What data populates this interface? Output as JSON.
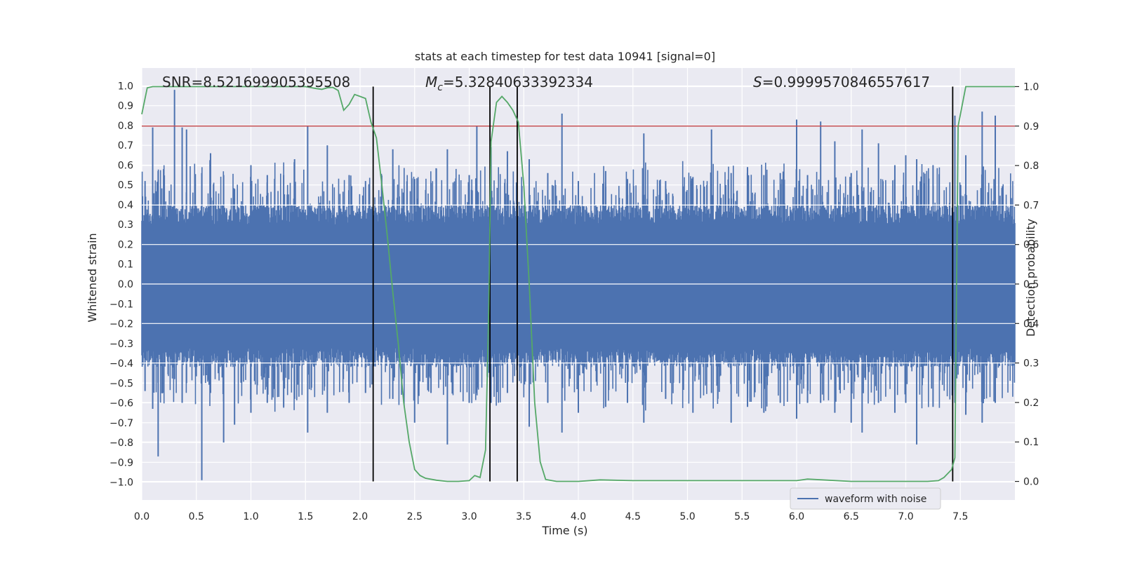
{
  "chart_data": {
    "type": "line",
    "title": "stats at each timestep for test data 10941 [signal=0]",
    "xlabel": "Time (s)",
    "ylabel": "Whitened strain",
    "y2label": "Detection probability",
    "xlim": [
      0,
      8.0
    ],
    "ylim": [
      -1.09,
      1.09
    ],
    "y2lim": [
      -0.047,
      1.047
    ],
    "xticks": [
      0.0,
      0.5,
      1.0,
      1.5,
      2.0,
      2.5,
      3.0,
      3.5,
      4.0,
      4.5,
      5.0,
      5.5,
      6.0,
      6.5,
      7.0,
      7.5
    ],
    "xtick_labels": [
      "0.0",
      "0.5",
      "1.0",
      "1.5",
      "2.0",
      "2.5",
      "3.0",
      "3.5",
      "4.0",
      "4.5",
      "5.0",
      "5.5",
      "6.0",
      "6.5",
      "7.0",
      "7.5"
    ],
    "yticks": [
      1.0,
      0.9,
      0.8,
      0.7,
      0.6,
      0.5,
      0.4,
      0.3,
      0.2,
      0.1,
      0.0,
      -0.1,
      -0.2,
      -0.3,
      -0.4,
      -0.5,
      -0.6,
      -0.7,
      -0.8,
      -0.9,
      -1.0
    ],
    "ytick_labels": [
      "1.0",
      "0.9",
      "0.8",
      "0.7",
      "0.6",
      "0.5",
      "0.4",
      "0.3",
      "0.2",
      "0.1",
      "0.0",
      "−0.1",
      "−0.2",
      "−0.3",
      "−0.4",
      "−0.5",
      "−0.6",
      "−0.7",
      "−0.8",
      "−0.9",
      "−1.0"
    ],
    "y2ticks": [
      1.0,
      0.9,
      0.8,
      0.7,
      0.6,
      0.5,
      0.4,
      0.3,
      0.2,
      0.1,
      0.0
    ],
    "y2tick_labels": [
      "1.0",
      "0.9",
      "0.8",
      "0.7",
      "0.6",
      "0.5",
      "0.4",
      "0.3",
      "0.2",
      "0.1",
      "0.0"
    ],
    "grid": true,
    "legend_position": "lower-right",
    "series": [
      {
        "name": "waveform with noise",
        "color": "#4c72b0",
        "description_values": "noise envelope",
        "spikes": [
          [
            0.03,
            0.52,
            -0.54
          ],
          [
            0.1,
            0.79,
            -0.63
          ],
          [
            0.15,
            0.57,
            -0.87
          ],
          [
            0.2,
            0.58,
            -0.55
          ],
          [
            0.3,
            0.98,
            -0.48
          ],
          [
            0.37,
            0.79,
            -0.6
          ],
          [
            0.41,
            0.78,
            -0.5
          ],
          [
            0.55,
            0.56,
            -0.99
          ],
          [
            0.63,
            0.66,
            -0.55
          ],
          [
            0.75,
            0.55,
            -0.8
          ],
          [
            0.85,
            0.48,
            -0.71
          ],
          [
            1.0,
            0.6,
            -0.65
          ],
          [
            1.15,
            0.55,
            -0.6
          ],
          [
            1.3,
            0.55,
            -0.62
          ],
          [
            1.4,
            0.63,
            -0.58
          ],
          [
            1.52,
            0.8,
            -0.75
          ],
          [
            1.7,
            0.7,
            -0.65
          ],
          [
            1.9,
            0.55,
            -0.6
          ],
          [
            2.05,
            0.52,
            -0.55
          ],
          [
            2.3,
            0.68,
            -0.58
          ],
          [
            2.5,
            0.53,
            -0.7
          ],
          [
            2.65,
            0.51,
            -0.55
          ],
          [
            2.8,
            0.68,
            -0.81
          ],
          [
            3.0,
            0.55,
            -0.6
          ],
          [
            3.07,
            0.8,
            -0.55
          ],
          [
            3.2,
            0.69,
            -0.6
          ],
          [
            3.35,
            0.67,
            -0.55
          ],
          [
            3.55,
            0.63,
            -0.72
          ],
          [
            3.72,
            0.56,
            -0.6
          ],
          [
            3.85,
            0.86,
            -0.75
          ],
          [
            4.0,
            0.52,
            -0.65
          ],
          [
            4.25,
            0.57,
            -0.62
          ],
          [
            4.45,
            0.53,
            -0.6
          ],
          [
            4.6,
            0.76,
            -0.7
          ],
          [
            4.8,
            0.52,
            -0.58
          ],
          [
            5.05,
            0.54,
            -0.65
          ],
          [
            5.22,
            0.78,
            -0.55
          ],
          [
            5.4,
            0.56,
            -0.7
          ],
          [
            5.55,
            0.59,
            -0.62
          ],
          [
            5.7,
            0.55,
            -0.65
          ],
          [
            5.85,
            0.56,
            -0.6
          ],
          [
            6.0,
            0.83,
            -0.68
          ],
          [
            6.1,
            0.55,
            -0.6
          ],
          [
            6.22,
            0.82,
            -0.6
          ],
          [
            6.35,
            0.72,
            -0.65
          ],
          [
            6.5,
            0.56,
            -0.7
          ],
          [
            6.6,
            0.78,
            -0.75
          ],
          [
            6.75,
            0.71,
            -0.6
          ],
          [
            6.9,
            0.6,
            -0.65
          ],
          [
            7.0,
            0.65,
            -0.6
          ],
          [
            7.1,
            0.63,
            -0.81
          ],
          [
            7.25,
            0.6,
            -0.62
          ],
          [
            7.45,
            0.85,
            -0.6
          ],
          [
            7.55,
            0.65,
            -0.66
          ],
          [
            7.7,
            0.87,
            -0.7
          ],
          [
            7.82,
            0.85,
            -0.6
          ]
        ]
      },
      {
        "name": "detection probability",
        "color": "#55a868",
        "axis": "right",
        "x": [
          0.0,
          0.05,
          0.1,
          0.2,
          0.3,
          0.4,
          0.5,
          0.6,
          0.7,
          0.8,
          0.9,
          1.0,
          1.1,
          1.2,
          1.3,
          1.4,
          1.5,
          1.6,
          1.65,
          1.7,
          1.75,
          1.8,
          1.85,
          1.9,
          1.95,
          2.0,
          2.05,
          2.1,
          2.15,
          2.2,
          2.25,
          2.3,
          2.35,
          2.4,
          2.45,
          2.5,
          2.55,
          2.6,
          2.7,
          2.8,
          2.9,
          3.0,
          3.05,
          3.1,
          3.15,
          3.18,
          3.2,
          3.25,
          3.3,
          3.35,
          3.4,
          3.45,
          3.5,
          3.55,
          3.6,
          3.65,
          3.7,
          3.8,
          4.0,
          4.2,
          4.5,
          4.9,
          5.0,
          5.5,
          5.9,
          6.0,
          6.1,
          6.5,
          7.0,
          7.2,
          7.3,
          7.35,
          7.42,
          7.45,
          7.48,
          7.55,
          7.7,
          8.0
        ],
        "values": [
          0.93,
          0.997,
          1.0,
          1.0,
          1.0,
          1.0,
          1.0,
          1.0,
          1.0,
          1.0,
          1.0,
          1.0,
          1.0,
          1.0,
          1.0,
          1.0,
          1.0,
          0.995,
          0.993,
          0.997,
          0.998,
          0.99,
          0.94,
          0.955,
          0.98,
          0.975,
          0.97,
          0.91,
          0.87,
          0.75,
          0.62,
          0.48,
          0.35,
          0.2,
          0.1,
          0.03,
          0.015,
          0.008,
          0.003,
          0.0,
          0.0,
          0.002,
          0.015,
          0.01,
          0.08,
          0.45,
          0.86,
          0.96,
          0.975,
          0.96,
          0.94,
          0.91,
          0.75,
          0.5,
          0.2,
          0.05,
          0.005,
          0.0,
          0.0,
          0.004,
          0.002,
          0.002,
          0.002,
          0.002,
          0.002,
          0.002,
          0.006,
          0.0,
          0.0,
          0.0,
          0.002,
          0.01,
          0.03,
          0.06,
          0.9,
          1.0,
          1.0,
          1.0
        ]
      }
    ],
    "threshold": {
      "value": 0.9,
      "axis": "right",
      "color": "#c44e52"
    },
    "vlines": [
      2.12,
      3.19,
      3.44,
      7.43
    ],
    "vline_color": "#000000",
    "annotations": [
      {
        "text": "SNR=8.521699905395508",
        "x": 0.2,
        "y": 1.0
      },
      {
        "text_prefix": "M",
        "text_sub": "c",
        "text_rest": "=5.32840633392334",
        "x": 2.6,
        "y": 1.0
      },
      {
        "text_prefix": "S",
        "text_rest": "=0.9999570846557617",
        "x": 5.6,
        "y": 1.0
      }
    ],
    "legend_label": "waveform with noise"
  }
}
